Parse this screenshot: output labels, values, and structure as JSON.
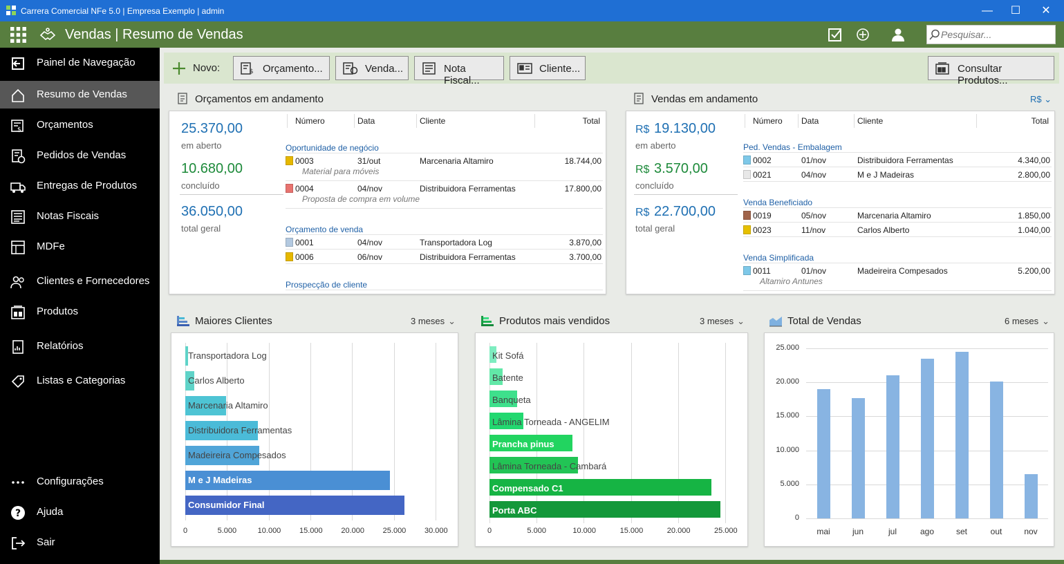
{
  "window": {
    "title": "Carrera Comercial NFe 5.0 | Empresa Exemplo | admin",
    "minimize": "—",
    "maximize": "☐",
    "close": "✕"
  },
  "header": {
    "title": "Vendas | Resumo de Vendas",
    "search_placeholder": "Pesquisar..."
  },
  "sidebar": {
    "items": [
      {
        "label": "Painel de Navegação",
        "icon": "panel-exit-icon"
      },
      {
        "label": "Resumo de Vendas",
        "icon": "home-icon",
        "active": true
      },
      {
        "label": "Orçamentos",
        "icon": "quote-icon"
      },
      {
        "label": "Pedidos de Vendas",
        "icon": "sales-order-icon"
      },
      {
        "label": "Entregas de Produtos",
        "icon": "truck-icon"
      },
      {
        "label": "Notas Fiscais",
        "icon": "invoice-icon"
      },
      {
        "label": "MDFe",
        "icon": "mdfe-icon"
      },
      {
        "label": "Clientes e Fornecedores",
        "icon": "people-icon"
      },
      {
        "label": "Produtos",
        "icon": "products-icon"
      },
      {
        "label": "Relatórios",
        "icon": "report-icon"
      },
      {
        "label": "Listas e Categorias",
        "icon": "tag-icon"
      }
    ],
    "bottom": [
      {
        "label": "Configurações",
        "icon": "more-icon"
      },
      {
        "label": "Ajuda",
        "icon": "help-icon"
      },
      {
        "label": "Sair",
        "icon": "exit-icon"
      }
    ]
  },
  "toolbar": {
    "new_label": "Novo:",
    "buttons": [
      "Orçamento...",
      "Venda...",
      "Nota Fiscal...",
      "Cliente..."
    ],
    "consult": "Consultar Produtos..."
  },
  "quotes": {
    "title": "Orçamentos em andamento",
    "open": "25.370,00",
    "open_label": "em aberto",
    "done": "10.680,00",
    "done_label": "concluído",
    "total": "36.050,00",
    "total_label": "total geral",
    "cols": [
      "Número",
      "Data",
      "Cliente",
      "Total"
    ],
    "groups": [
      {
        "name": "Oportunidade de negócio",
        "rows": [
          {
            "num": "0003",
            "date": "31/out",
            "client": "Marcenaria Altamiro",
            "total": "18.744,00",
            "color": "#e6b800",
            "note": "Material para móveis"
          },
          {
            "num": "0004",
            "date": "04/nov",
            "client": "Distribuidora Ferramentas",
            "total": "17.800,00",
            "color": "#e8736f",
            "note": "Proposta de compra em volume"
          }
        ]
      },
      {
        "name": "Orçamento de venda",
        "rows": [
          {
            "num": "0001",
            "date": "04/nov",
            "client": "Transportadora Log",
            "total": "3.870,00",
            "color": "#b3c9e0"
          },
          {
            "num": "0006",
            "date": "06/nov",
            "client": "Distribuidora Ferramentas",
            "total": "3.700,00",
            "color": "#e6b800"
          }
        ]
      },
      {
        "name": "Prospecção de cliente",
        "rows": []
      }
    ]
  },
  "sales": {
    "title": "Vendas em andamento",
    "currency": "R$",
    "open": "19.130,00",
    "open_label": "em aberto",
    "done": "3.570,00",
    "done_label": "concluído",
    "total": "22.700,00",
    "total_label": "total geral",
    "cols": [
      "Número",
      "Data",
      "Cliente",
      "Total"
    ],
    "groups": [
      {
        "name": "Ped. Vendas - Embalagem",
        "rows": [
          {
            "num": "0002",
            "date": "01/nov",
            "client": "Distribuidora Ferramentas",
            "total": "4.340,00",
            "color": "#7ec8e8"
          },
          {
            "num": "0021",
            "date": "04/nov",
            "client": "M e J Madeiras",
            "total": "2.800,00",
            "color": "#e8e8e8"
          }
        ]
      },
      {
        "name": "Venda Beneficiado",
        "rows": [
          {
            "num": "0019",
            "date": "05/nov",
            "client": "Marcenaria Altamiro",
            "total": "1.850,00",
            "color": "#a0644a"
          },
          {
            "num": "0023",
            "date": "11/nov",
            "client": "Carlos Alberto",
            "total": "1.040,00",
            "color": "#e6c000"
          }
        ]
      },
      {
        "name": "Venda Simplificada",
        "rows": [
          {
            "num": "0011",
            "date": "01/nov",
            "client": "Madeireira Compesados",
            "total": "5.200,00",
            "color": "#7ec8e8",
            "note": "Altamiro Antunes"
          }
        ]
      }
    ]
  },
  "chart_data": [
    {
      "type": "bar",
      "orientation": "horizontal",
      "title": "Maiores Clientes",
      "period": "3 meses",
      "categories": [
        "Transportadora Log",
        "Carlos Alberto",
        "Marcenaria Altamiro",
        "Distribuidora Ferramentas",
        "Madeireira Compesados",
        "M e J Madeiras",
        "Consumidor Final"
      ],
      "values": [
        300,
        1040,
        4900,
        8700,
        8900,
        24500,
        26300
      ],
      "colors": [
        "#5fd3c8",
        "#5fd3c8",
        "#4ec4d4",
        "#4bbbd8",
        "#50a5d8",
        "#4a8fd4",
        "#4466c4"
      ],
      "label_white": [
        false,
        false,
        false,
        false,
        false,
        true,
        true
      ],
      "xlim": [
        0,
        30000
      ],
      "xticks": [
        "0",
        "5.000",
        "10.000",
        "15.000",
        "20.000",
        "25.000",
        "30.000"
      ]
    },
    {
      "type": "bar",
      "orientation": "horizontal",
      "title": "Produtos mais vendidos",
      "period": "3 meses",
      "categories": [
        "Kit Sofá",
        "Batente",
        "Banqueta",
        "Lâmina Torneada - ANGELIM",
        "Prancha pinus",
        "Lâmina Torneada - Cambará",
        "Compensado C1",
        "Porta ABC"
      ],
      "values": [
        700,
        1400,
        2900,
        3600,
        8800,
        9400,
        23500,
        24500
      ],
      "colors": [
        "#7eedc0",
        "#62e8a8",
        "#3ee08c",
        "#22d870",
        "#22d460",
        "#22c455",
        "#16b444",
        "#14983a"
      ],
      "label_white": [
        false,
        false,
        false,
        false,
        true,
        false,
        true,
        true
      ],
      "xlim": [
        0,
        25000
      ],
      "xticks": [
        "0",
        "5.000",
        "10.000",
        "15.000",
        "20.000",
        "25.000"
      ]
    },
    {
      "type": "bar",
      "orientation": "vertical",
      "title": "Total de Vendas",
      "period": "6 meses",
      "categories": [
        "mai",
        "jun",
        "jul",
        "ago",
        "set",
        "out",
        "nov"
      ],
      "values": [
        19000,
        17700,
        21000,
        23500,
        24500,
        20100,
        6500
      ],
      "color": "#88b4e2",
      "ylim": [
        0,
        25000
      ],
      "yticks": [
        "0",
        "5.000",
        "10.000",
        "15.000",
        "20.000",
        "25.000"
      ]
    }
  ]
}
